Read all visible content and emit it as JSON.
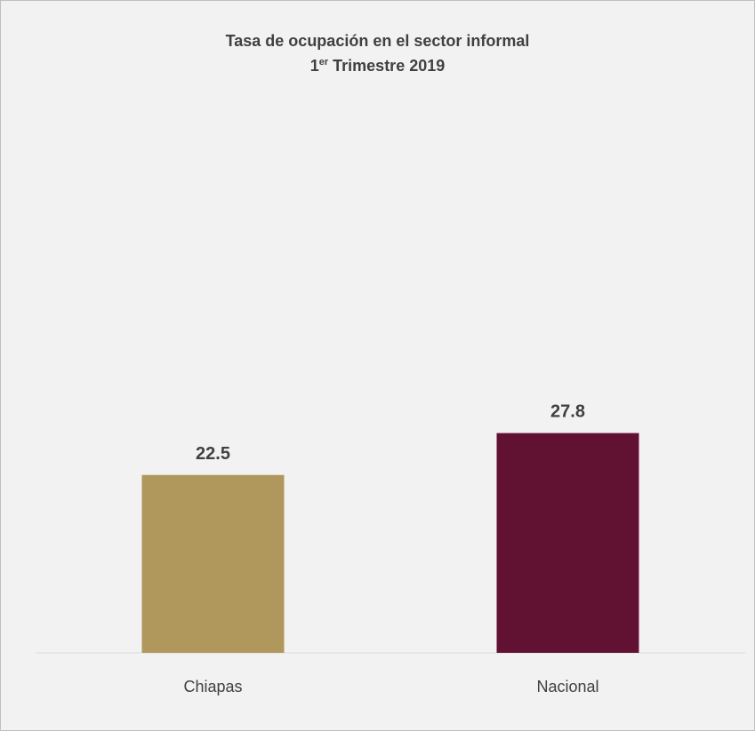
{
  "chart_data": {
    "type": "bar",
    "title_line1": "Tasa de ocupación en el sector informal",
    "title_line2_prefix": "1",
    "title_line2_sup": "er",
    "title_line2_suffix": " Trimestre 2019",
    "categories": [
      "Chiapas",
      "Nacional"
    ],
    "values": [
      22.5,
      27.8
    ],
    "value_labels": [
      "22.5",
      "27.8"
    ],
    "colors": [
      "#b0985c",
      "#611232"
    ],
    "grid": false,
    "legend": "none"
  }
}
